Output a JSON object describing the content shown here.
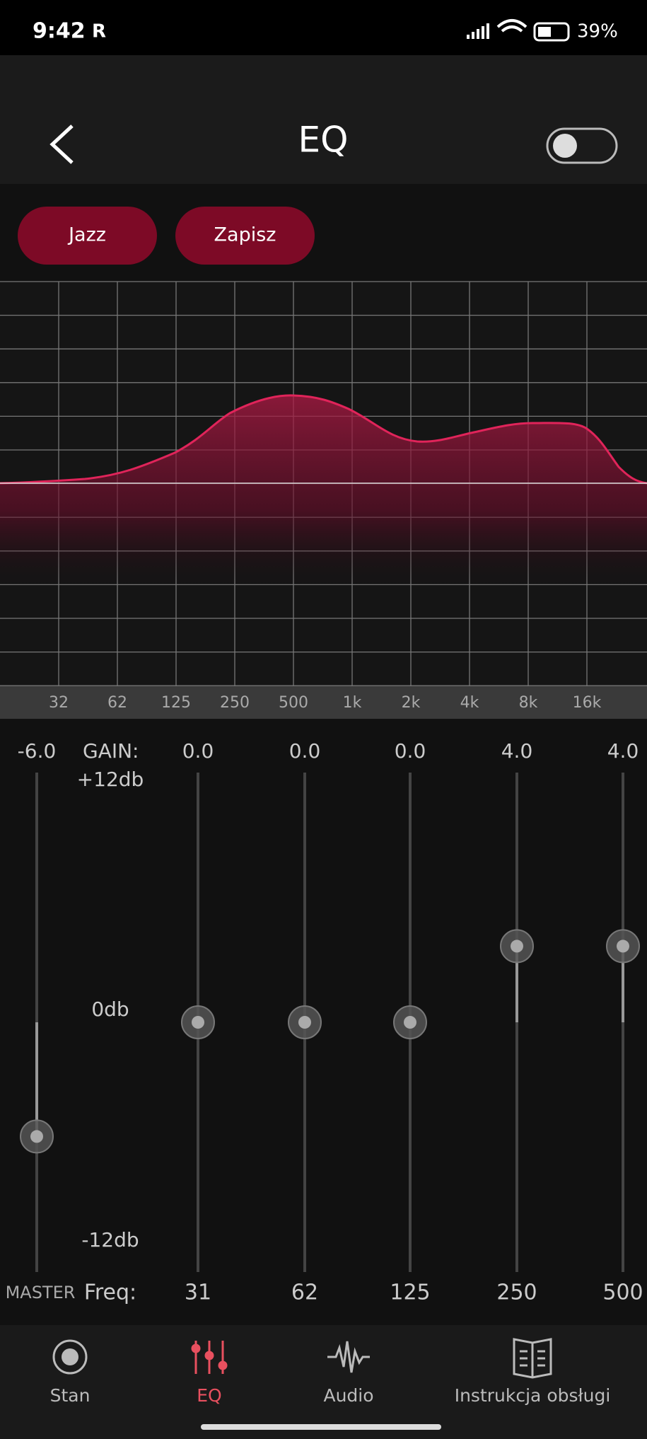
{
  "status": {
    "time": "9:42",
    "icons": "R",
    "battery": "39%"
  },
  "header": {
    "title": "EQ"
  },
  "presets": [
    "Jazz",
    "Zapisz"
  ],
  "graph": {
    "freq_labels": [
      "32",
      "62",
      "125",
      "250",
      "500",
      "1k",
      "2k",
      "4k",
      "8k",
      "16k"
    ]
  },
  "sliders": {
    "master": {
      "value": "-6.0",
      "label": "MASTER"
    },
    "gain_label": "GAIN:",
    "max_label": "+12db",
    "mid_label": "0db",
    "min_label": "-12db",
    "freq_label": "Freq:",
    "bands": [
      {
        "value": "0.0",
        "freq": "31"
      },
      {
        "value": "0.0",
        "freq": "62"
      },
      {
        "value": "0.0",
        "freq": "125"
      },
      {
        "value": "4.0",
        "freq": "250"
      },
      {
        "value": "4.0",
        "freq": "500"
      }
    ]
  },
  "nav": [
    "Stan",
    "EQ",
    "Audio",
    "Instrukcja obsługi"
  ]
}
